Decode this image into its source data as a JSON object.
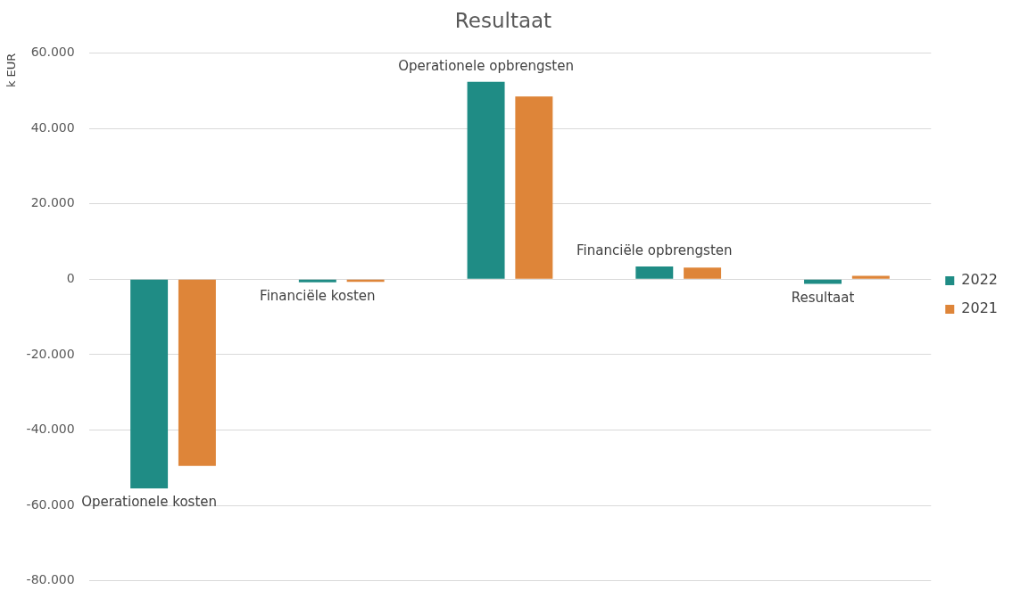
{
  "chart_data": {
    "type": "bar",
    "title": "Resultaat",
    "ylabel": "k EUR",
    "categories": [
      "Operationele kosten",
      "Financiële kosten",
      "Operationele opbrengsten",
      "Financiële opbrengsten",
      "Resultaat"
    ],
    "series": [
      {
        "name": "2022",
        "color": "#1f8c85",
        "values": [
          -55500,
          -800,
          52400,
          3400,
          -1200
        ]
      },
      {
        "name": "2021",
        "color": "#de8539",
        "values": [
          -49500,
          -700,
          48500,
          3100,
          900
        ]
      }
    ],
    "ylim": [
      -80000,
      60000
    ],
    "yticks": [
      {
        "value": -80000,
        "label": "-80.000"
      },
      {
        "value": -60000,
        "label": "-60.000"
      },
      {
        "value": -40000,
        "label": "-40.000"
      },
      {
        "value": -20000,
        "label": "-20.000"
      },
      0,
      {
        "value": 20000,
        "label": "20.000"
      },
      {
        "value": 40000,
        "label": "40.000"
      },
      {
        "value": 60000,
        "label": "60.000"
      }
    ],
    "grid": "y",
    "legend": "right"
  }
}
